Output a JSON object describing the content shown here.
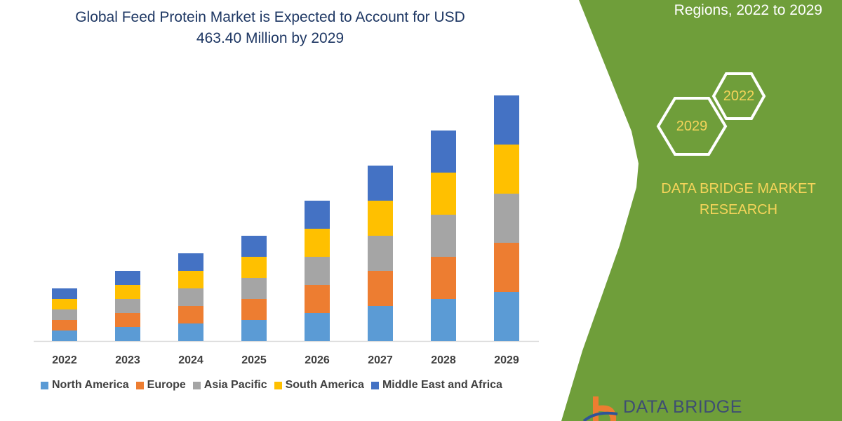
{
  "header": {
    "title_line1": "Global Feed Protein Market is Expected to Account for USD",
    "title_line2": "463.40 Million by 2029",
    "subtitle": "Regions, 2022 to 2029"
  },
  "side_panel": {
    "hex_left": "2029",
    "hex_right": "2022",
    "brand_line1": "DATA BRIDGE MARKET",
    "brand_line2": "RESEARCH",
    "logo_text": "DATA BRIDGE",
    "panel_color": "#6f9e3a",
    "accent_color": "#f5d45a"
  },
  "chart_data": {
    "type": "bar",
    "stacked": true,
    "title": "",
    "xlabel": "",
    "ylabel": "",
    "y_axis_shown": false,
    "grid": false,
    "legend_position": "bottom",
    "categories": [
      "2022",
      "2023",
      "2024",
      "2025",
      "2026",
      "2027",
      "2028",
      "2029"
    ],
    "series": [
      {
        "name": "North America",
        "color": "#5b9bd5",
        "values": [
          15,
          20,
          25,
          30,
          40,
          50,
          60,
          70
        ]
      },
      {
        "name": "Europe",
        "color": "#ed7d31",
        "values": [
          15,
          20,
          25,
          30,
          40,
          50,
          60,
          70
        ]
      },
      {
        "name": "Asia Pacific",
        "color": "#a5a5a5",
        "values": [
          15,
          20,
          25,
          30,
          40,
          50,
          60,
          70
        ]
      },
      {
        "name": "South America",
        "color": "#ffc000",
        "values": [
          15,
          20,
          25,
          30,
          40,
          50,
          60,
          70
        ]
      },
      {
        "name": "Middle East and Africa",
        "color": "#4472c4",
        "values": [
          15,
          20,
          25,
          30,
          40,
          50,
          60,
          70
        ]
      }
    ]
  }
}
